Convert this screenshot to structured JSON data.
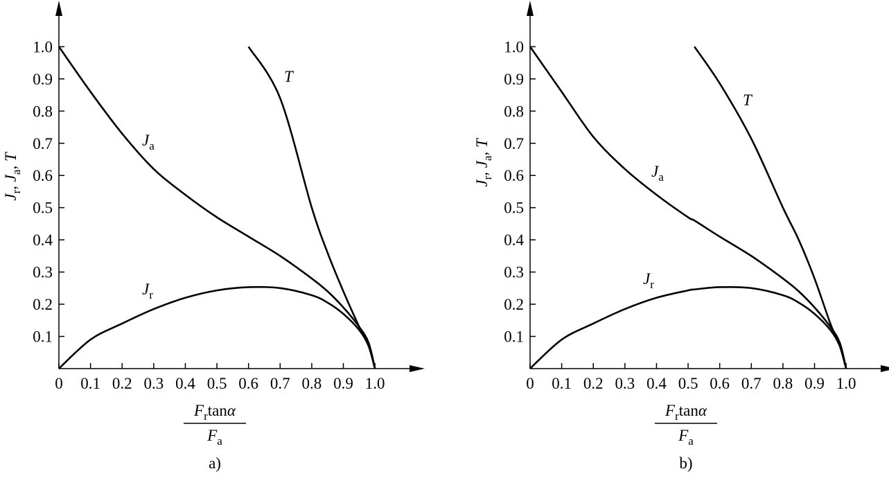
{
  "chart_data": [
    {
      "type": "line",
      "caption": "a)",
      "xlabel": {
        "numerator": [
          {
            "text": "F",
            "sub": "r"
          },
          {
            "text": "tan"
          },
          {
            "text": "α"
          }
        ],
        "denominator": [
          {
            "text": "F",
            "sub": "a"
          }
        ]
      },
      "ylabel": [
        {
          "text": "J",
          "sub": "r"
        },
        {
          "text": ", "
        },
        {
          "text": "J",
          "sub": "a"
        },
        {
          "text": ", "
        },
        {
          "text": "T"
        }
      ],
      "xlim": [
        0,
        1.14
      ],
      "ylim": [
        0,
        1.13
      ],
      "xticks": [
        0,
        0.1,
        0.2,
        0.3,
        0.4,
        0.5,
        0.6,
        0.7,
        0.8,
        0.9,
        {
          "value": 1,
          "label": "1.0"
        }
      ],
      "yticks": [
        0.1,
        0.2,
        0.3,
        0.4,
        0.5,
        0.6,
        0.7,
        0.8,
        0.9,
        {
          "value": 1,
          "label": "1.0"
        }
      ],
      "x": [
        0,
        0.1,
        0.2,
        0.3,
        0.4,
        0.5,
        0.6,
        0.7,
        0.8,
        0.85,
        0.9,
        0.95,
        0.98,
        1.0
      ],
      "series": [
        {
          "symbol": "J",
          "subscript": "r",
          "color": "#000000",
          "values": [
            0,
            0.09,
            0.14,
            0.185,
            0.22,
            0.243,
            0.253,
            0.25,
            0.228,
            0.205,
            0.17,
            0.12,
            0.07,
            0
          ]
        },
        {
          "symbol": "J",
          "subscript": "a",
          "color": "#000000",
          "values": [
            1.0,
            0.86,
            0.73,
            0.62,
            0.54,
            0.47,
            0.41,
            0.35,
            0.28,
            0.24,
            0.19,
            0.13,
            0.08,
            0
          ]
        },
        {
          "symbol": "T",
          "color": "#000000",
          "values": [
            null,
            null,
            null,
            null,
            null,
            null,
            1.0,
            0.84,
            0.5,
            0.36,
            0.24,
            0.13,
            0.07,
            0
          ]
        }
      ]
    },
    {
      "type": "line",
      "caption": "b)",
      "xlabel": {
        "numerator": [
          {
            "text": "F",
            "sub": "r"
          },
          {
            "text": "tan"
          },
          {
            "text": "α"
          }
        ],
        "denominator": [
          {
            "text": "F",
            "sub": "a"
          }
        ]
      },
      "ylabel": [
        {
          "text": "J",
          "sub": "r"
        },
        {
          "text": ", "
        },
        {
          "text": "J",
          "sub": "a"
        },
        {
          "text": ", "
        },
        {
          "text": "T"
        }
      ],
      "xlim": [
        0,
        1.14
      ],
      "ylim": [
        0,
        1.13
      ],
      "xticks": [
        0,
        0.1,
        0.2,
        0.3,
        0.4,
        0.5,
        0.6,
        0.7,
        0.8,
        0.9,
        {
          "value": 1,
          "label": "1.0"
        }
      ],
      "yticks": [
        0.1,
        0.2,
        0.3,
        0.4,
        0.5,
        0.6,
        0.7,
        0.8,
        0.9,
        {
          "value": 1,
          "label": "1.0"
        }
      ],
      "x": [
        0,
        0.1,
        0.2,
        0.3,
        0.4,
        0.5,
        0.52,
        0.6,
        0.7,
        0.8,
        0.85,
        0.9,
        0.95,
        0.98,
        1.0
      ],
      "series": [
        {
          "symbol": "J",
          "subscript": "r",
          "color": "#000000",
          "values": [
            0,
            0.09,
            0.14,
            0.185,
            0.22,
            0.243,
            0.246,
            0.253,
            0.25,
            0.228,
            0.205,
            0.17,
            0.12,
            0.07,
            0
          ]
        },
        {
          "symbol": "J",
          "subscript": "a",
          "color": "#000000",
          "values": [
            1.0,
            0.86,
            0.72,
            0.62,
            0.54,
            0.47,
            0.46,
            0.41,
            0.35,
            0.28,
            0.24,
            0.19,
            0.13,
            0.08,
            0
          ]
        },
        {
          "symbol": "T",
          "color": "#000000",
          "values": [
            null,
            null,
            null,
            null,
            null,
            null,
            1.0,
            0.886,
            0.714,
            0.5,
            0.4,
            0.28,
            0.14,
            0.07,
            0
          ]
        }
      ]
    }
  ]
}
